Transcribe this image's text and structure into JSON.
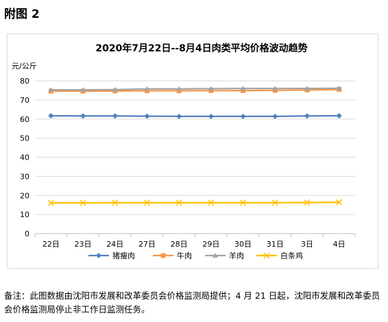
{
  "figure_label": "附图 2",
  "note": "备注：此图数据由沈阳市发展和改革委员会价格监测局提供；4 月 21 日起，沈阳市发展和改革委员会价格监测局停止非工作日监测任务。",
  "chart_data": {
    "type": "line",
    "title": "2020年7月22日--8月4日肉类平均价格波动趋势",
    "ylabel": "元/公斤",
    "xlabel": "",
    "ylim": [
      0,
      80
    ],
    "yticks": [
      0,
      10,
      20,
      30,
      40,
      50,
      60,
      70,
      80
    ],
    "grid": true,
    "legend_position": "bottom",
    "categories": [
      "22日",
      "23日",
      "24日",
      "27日",
      "28日",
      "29日",
      "30日",
      "31日",
      "3日",
      "4日"
    ],
    "series": [
      {
        "name": "猪瘦肉",
        "color": "#4f81bd",
        "marker": "diamond",
        "values": [
          61.7,
          61.6,
          61.6,
          61.5,
          61.4,
          61.4,
          61.4,
          61.4,
          61.6,
          61.7
        ]
      },
      {
        "name": "牛肉",
        "color": "#f79646",
        "marker": "square",
        "values": [
          74.6,
          74.6,
          74.7,
          74.8,
          74.8,
          74.9,
          74.9,
          75.0,
          75.2,
          75.5
        ]
      },
      {
        "name": "羊肉",
        "color": "#a5a5a5",
        "marker": "triangle",
        "values": [
          75.3,
          75.3,
          75.4,
          75.8,
          75.8,
          75.9,
          76.0,
          76.0,
          76.0,
          76.1
        ]
      },
      {
        "name": "白条鸡",
        "color": "#ffc000",
        "marker": "x",
        "values": [
          16.1,
          16.1,
          16.2,
          16.2,
          16.2,
          16.2,
          16.2,
          16.2,
          16.3,
          16.4
        ]
      }
    ]
  }
}
